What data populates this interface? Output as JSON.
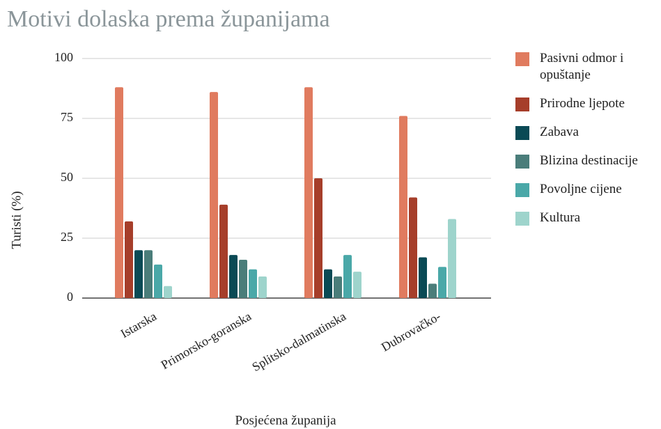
{
  "chart_data": {
    "type": "bar",
    "title": "Motivi dolaska prema županijama",
    "x_label": "Posjećena županija",
    "y_label": "Turisti (%)",
    "categories": [
      "Istarska",
      "Primorsko-goranska",
      "Splitsko-dalmatinska",
      "Dubrovačko-"
    ],
    "series": [
      {
        "name": "Pasivni odmor i opuštanje",
        "color": "#e07b5f",
        "values": [
          88,
          86,
          88,
          76
        ]
      },
      {
        "name": "Prirodne ljepote",
        "color": "#a63e2a",
        "values": [
          32,
          39,
          50,
          42
        ]
      },
      {
        "name": "Zabava",
        "color": "#0a4a55",
        "values": [
          20,
          18,
          12,
          17
        ]
      },
      {
        "name": "Blizina destinacije",
        "color": "#4a7d7a",
        "values": [
          20,
          16,
          9,
          6
        ]
      },
      {
        "name": "Povoljne cijene",
        "color": "#4aa8a8",
        "values": [
          14,
          12,
          18,
          13
        ]
      },
      {
        "name": "Kultura",
        "color": "#9ed4cc",
        "values": [
          5,
          9,
          11,
          33
        ]
      }
    ],
    "ylim": [
      0,
      100
    ],
    "yticks": [
      0,
      25,
      50,
      75,
      100
    ],
    "grid": true,
    "legend": "right"
  }
}
